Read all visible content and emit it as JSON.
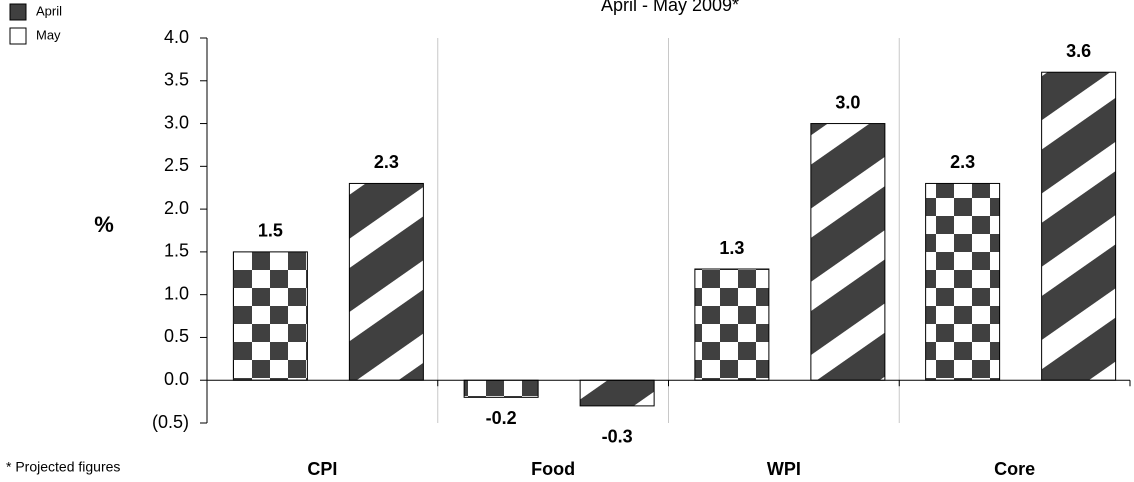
{
  "chart_data": {
    "type": "bar",
    "title": "April - May 2009*",
    "ylabel": "%",
    "note": "* Projected figures",
    "categories": [
      "CPI",
      "Food",
      "WPI",
      "Core"
    ],
    "series": [
      {
        "name": "April",
        "color": "#404040",
        "values": [
          1.5,
          -0.2,
          1.3,
          2.3
        ],
        "value_labels": [
          "1.5",
          "-0.2",
          "1.3",
          "2.3"
        ]
      },
      {
        "name": "May",
        "color": "#ffffff",
        "values": [
          2.3,
          -0.3,
          3.0,
          3.6
        ],
        "value_labels": [
          "2.3",
          "-0.3",
          "3.0",
          "3.6"
        ]
      }
    ],
    "ylim": [
      -0.5,
      4.0
    ],
    "yticks": [
      {
        "value": -0.5,
        "label": "(0.5)"
      },
      {
        "value": 0,
        "label": "0.0"
      },
      {
        "value": 0.5,
        "label": "0.5"
      },
      {
        "value": 1,
        "label": "1.0"
      },
      {
        "value": 1.5,
        "label": "1.5"
      },
      {
        "value": 2,
        "label": "2.0"
      },
      {
        "value": 2.5,
        "label": "2.5"
      },
      {
        "value": 3,
        "label": "3.0"
      },
      {
        "value": 3.5,
        "label": "3.5"
      },
      {
        "value": 4,
        "label": "4.0"
      }
    ],
    "legend": "upper left"
  }
}
